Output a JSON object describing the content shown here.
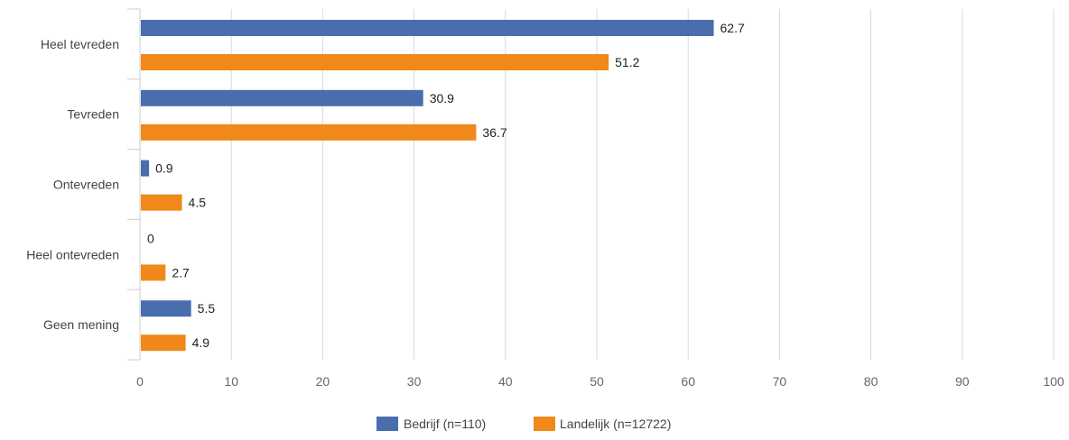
{
  "chart_data": {
    "type": "bar",
    "orientation": "horizontal",
    "categories": [
      "Heel tevreden",
      "Tevreden",
      "Ontevreden",
      "Heel ontevreden",
      "Geen mening"
    ],
    "series": [
      {
        "name": "Bedrijf (n=110)",
        "color": "#4a6ead",
        "values": [
          62.7,
          30.9,
          0.9,
          0,
          5.5
        ]
      },
      {
        "name": "Landelijk (n=12722)",
        "color": "#f0881a",
        "values": [
          51.2,
          36.7,
          4.5,
          2.7,
          4.9
        ]
      }
    ],
    "xlim": [
      0,
      100
    ],
    "xticks": [
      0,
      10,
      20,
      30,
      40,
      50,
      60,
      70,
      80,
      90,
      100
    ],
    "grid": true,
    "legend_position": "bottom"
  }
}
